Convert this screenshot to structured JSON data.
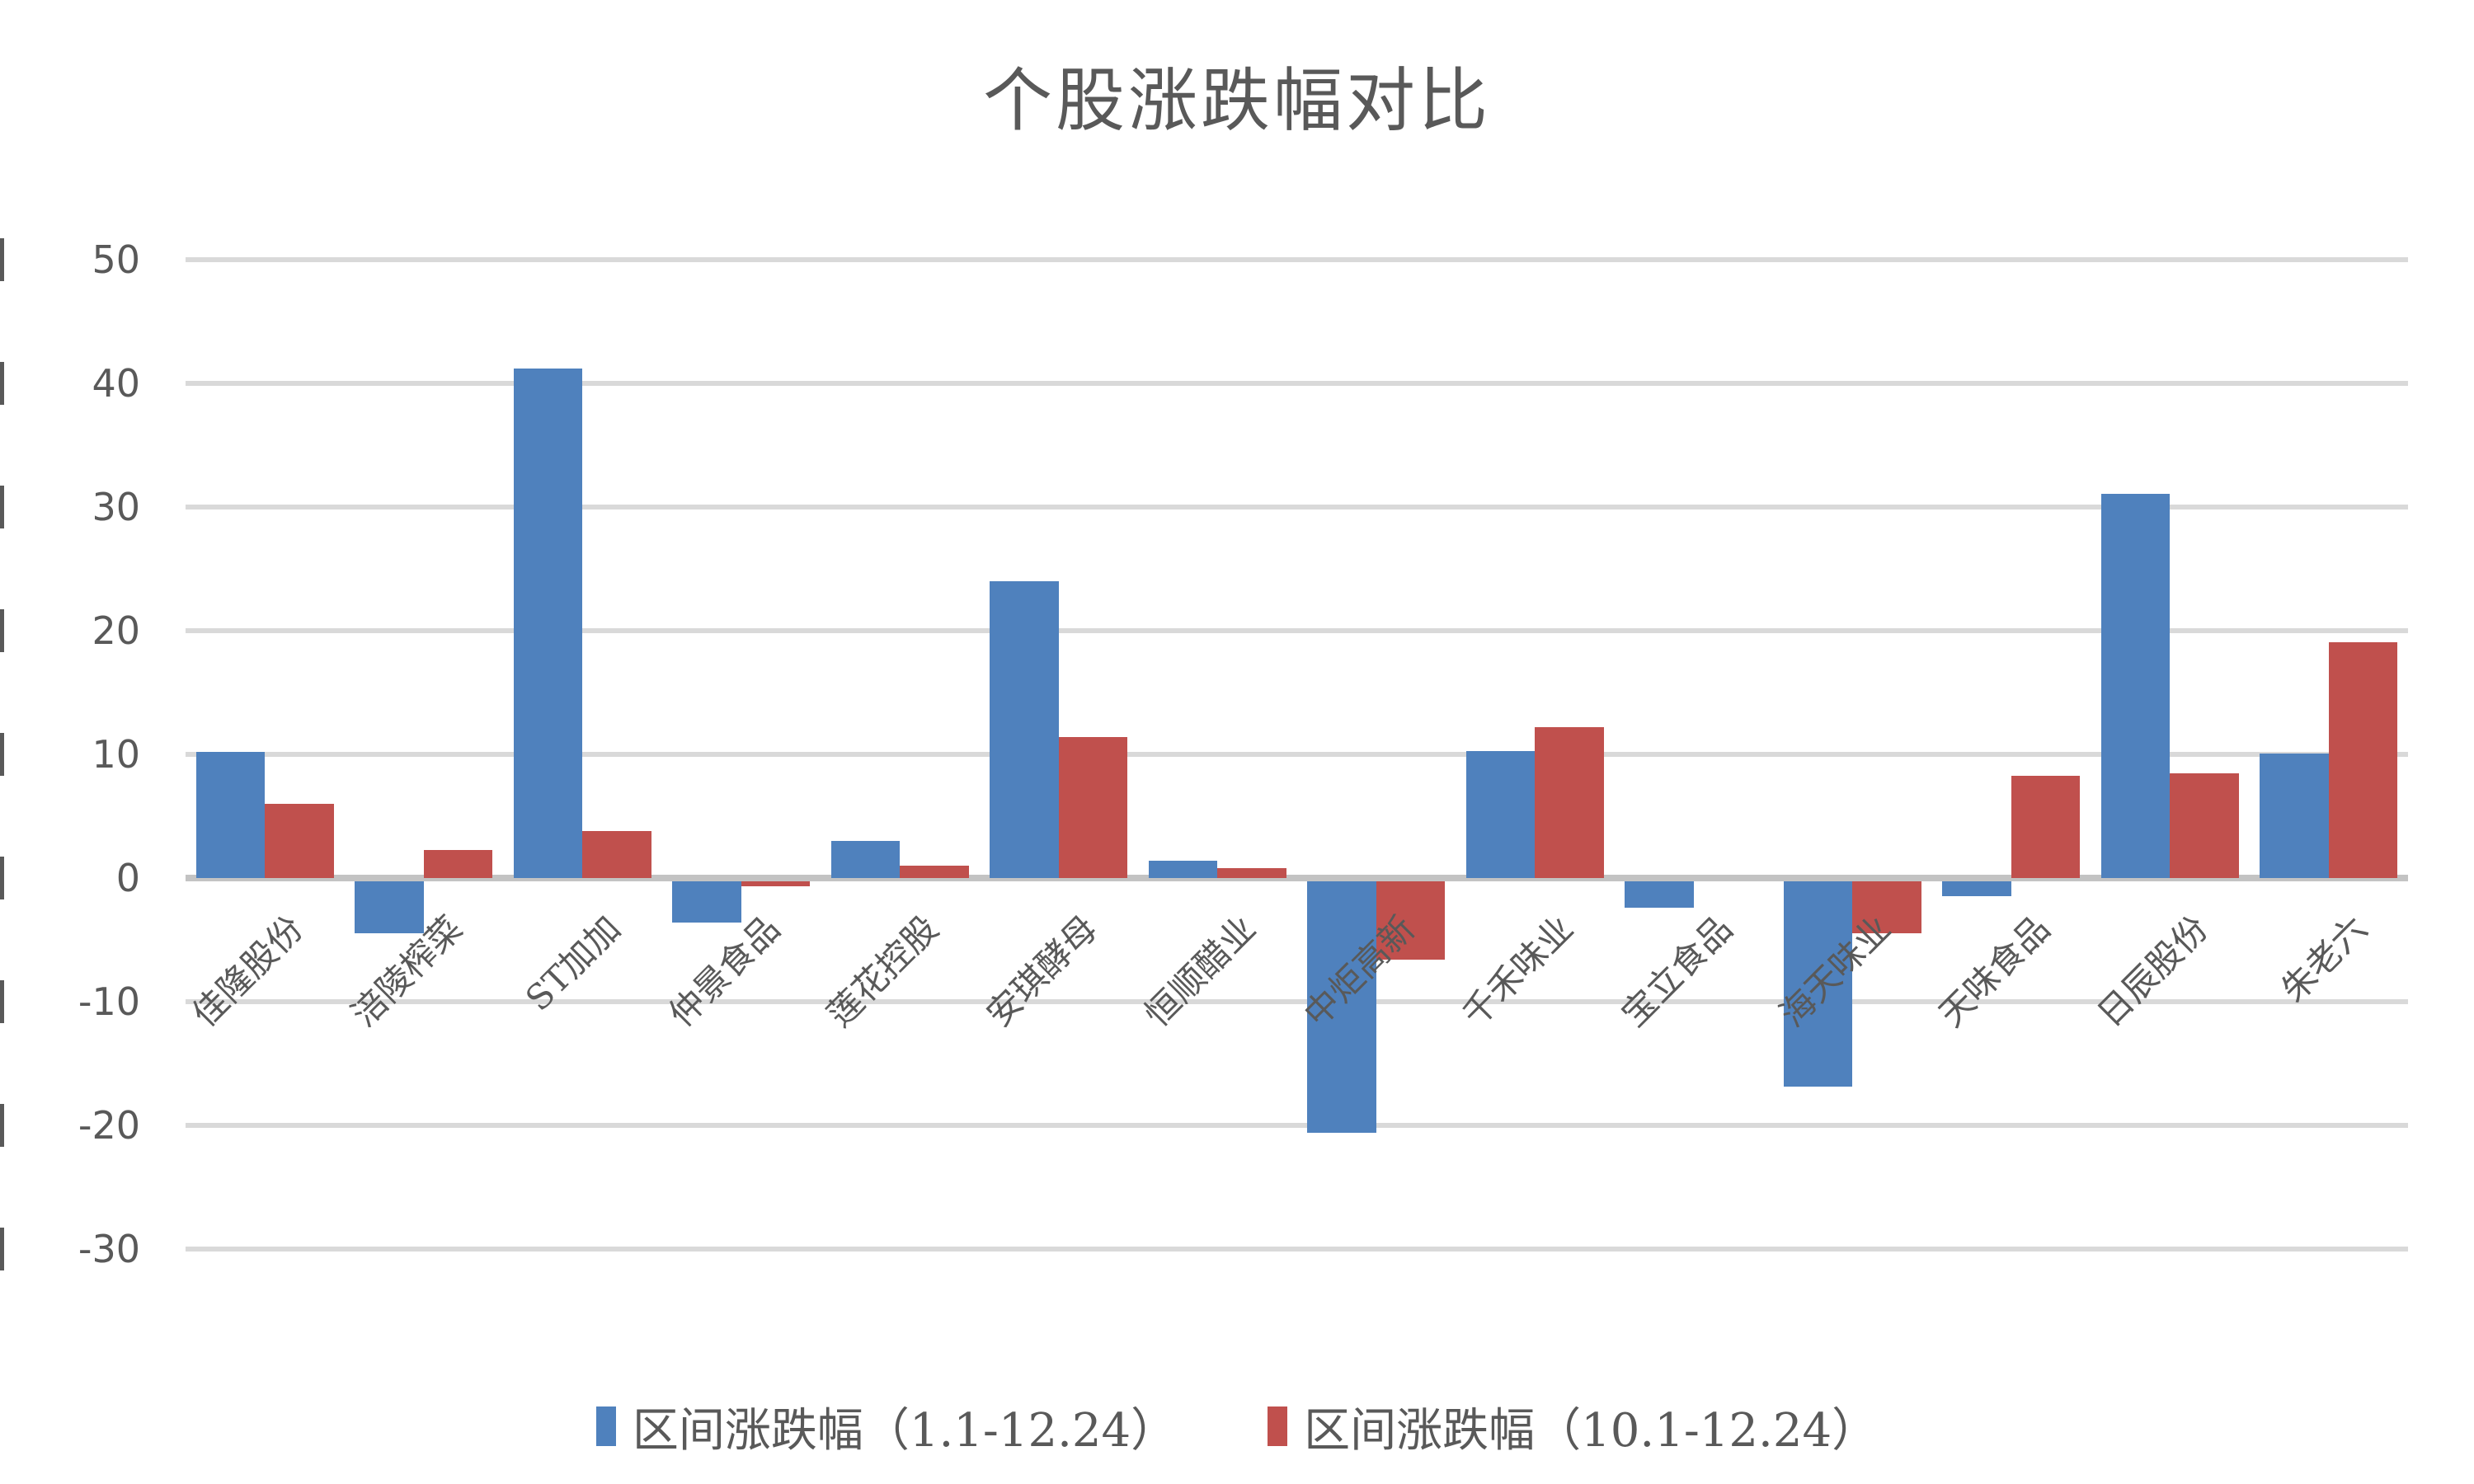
{
  "title": "个股涨跌幅对比",
  "chart_data": {
    "type": "bar",
    "title": "个股涨跌幅对比",
    "categories": [
      "佳隆股份",
      "涪陵榨菜",
      "ST加加",
      "仲景食品",
      "莲花控股",
      "安琪酵母",
      "恒顺醋业",
      "中炬高新",
      "千禾味业",
      "宝立食品",
      "海天味业",
      "天味食品",
      "日辰股份",
      "朱老六"
    ],
    "series": [
      {
        "name": "区间涨跌幅（1.1-12.24）",
        "color": "#4F81BD",
        "values": [
          10.2,
          -4.2,
          41.2,
          -3.3,
          3.0,
          24.0,
          1.4,
          -20.3,
          10.3,
          -2.1,
          -16.6,
          -1.2,
          31.1,
          10.1
        ]
      },
      {
        "name": "区间涨跌幅（10.1-12.24）",
        "color": "#C0504D",
        "values": [
          6.0,
          2.3,
          3.8,
          -0.4,
          1.0,
          11.4,
          0.8,
          -6.3,
          12.2,
          0,
          -4.2,
          8.3,
          8.5,
          19.1
        ]
      }
    ],
    "y_ticks": [
      50,
      40,
      30,
      20,
      10,
      0,
      -10,
      -20,
      -30
    ],
    "ylim": [
      -30,
      50
    ],
    "grid": true,
    "legend_position": "bottom",
    "colors": {
      "series1": "#4F81BD",
      "series2": "#C0504D",
      "gridline": "#D9D9D9",
      "zero_line": "#C3C3C3",
      "text": "#595959"
    }
  }
}
